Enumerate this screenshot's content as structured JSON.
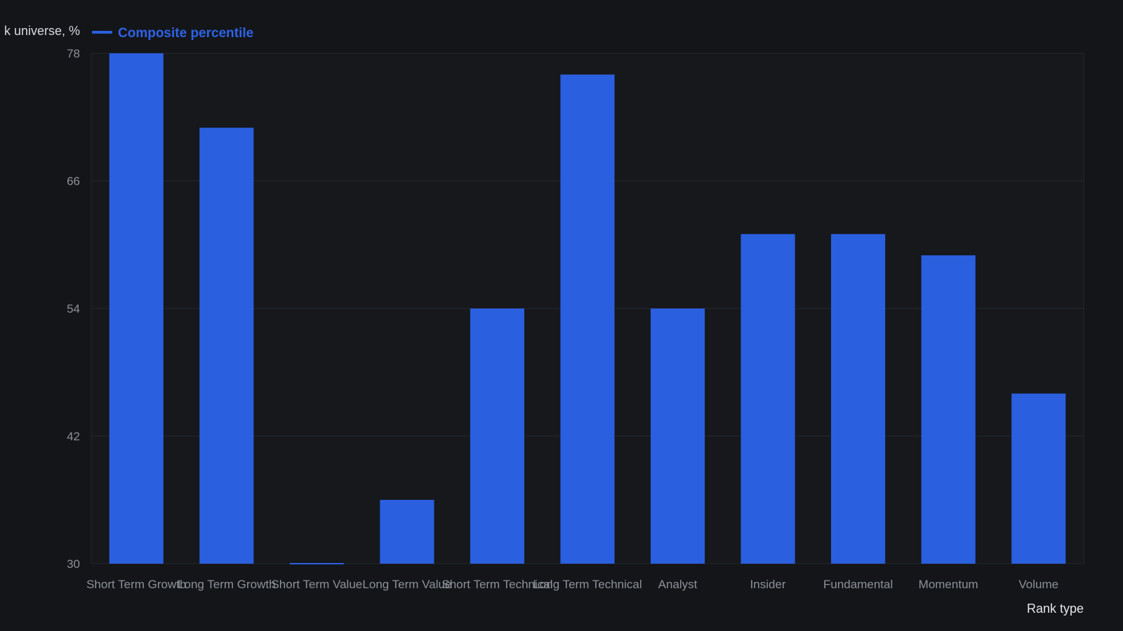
{
  "chart_data": {
    "type": "bar",
    "ylabel": "k universe, %",
    "xlabel": "Rank type",
    "ylim": [
      30,
      78
    ],
    "yticks": [
      30,
      42,
      54,
      66,
      78
    ],
    "grid": true,
    "legend_position": "top-left",
    "series": [
      {
        "name": "Composite percentile",
        "color": "#2a5fdf",
        "values": [
          78,
          71,
          30,
          36,
          54,
          76,
          54,
          61,
          61,
          59,
          46
        ]
      }
    ],
    "categories": [
      "Short Term Growth",
      "Long Term Growth",
      "Short Term Value",
      "Long Term Value",
      "Short Term Technical",
      "Long Term Technical",
      "Analyst",
      "Insider",
      "Fundamental",
      "Momentum",
      "Volume"
    ]
  }
}
